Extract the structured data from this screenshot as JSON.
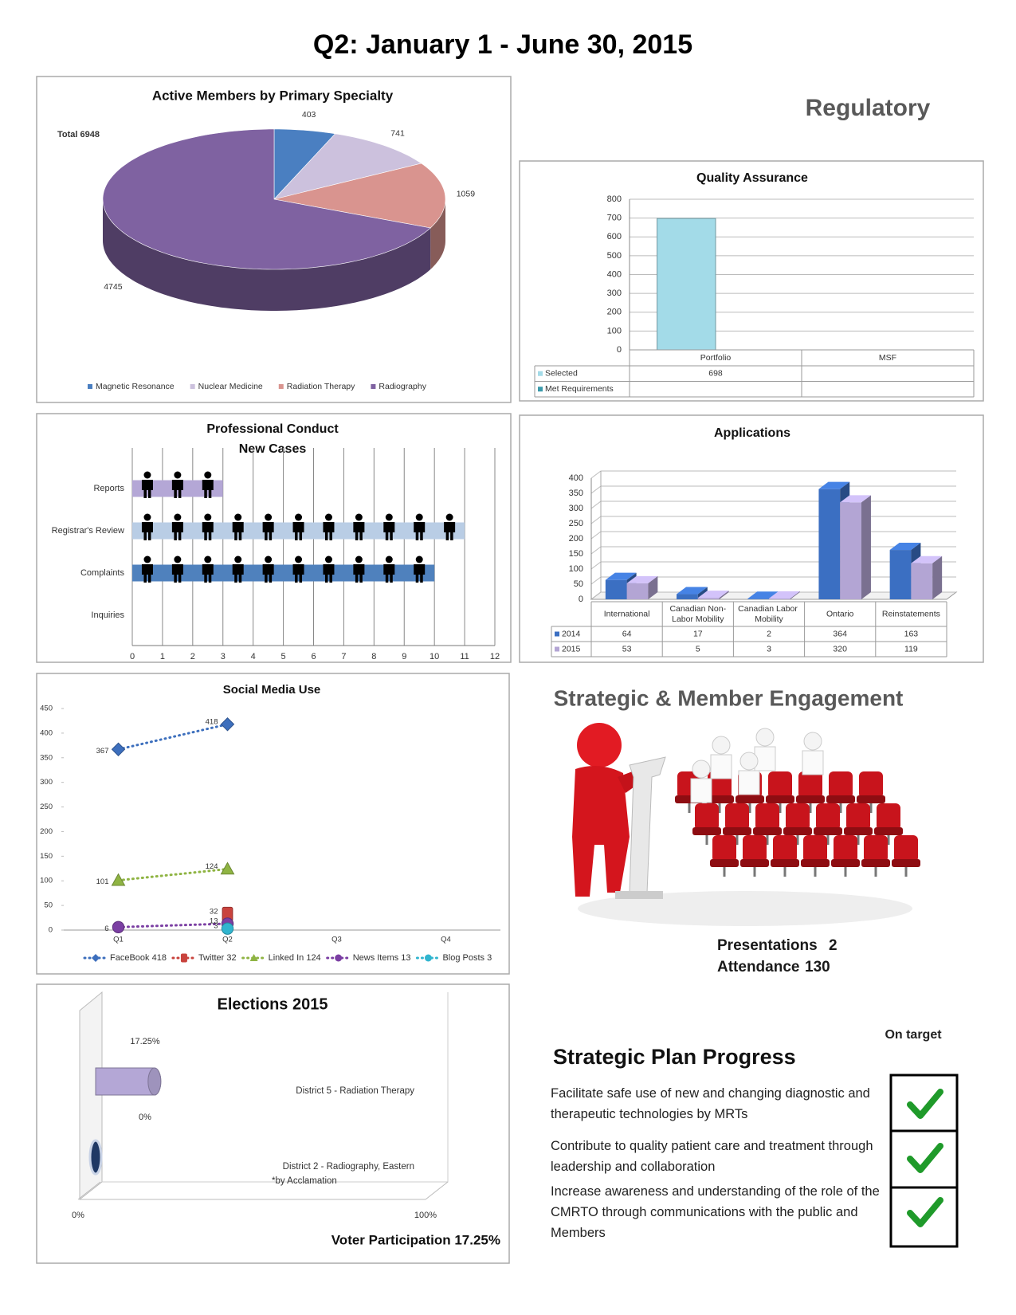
{
  "header": {
    "title": "Q2:  January 1 - June  30, 2015"
  },
  "sections": {
    "regulatory": "Regulatory",
    "engagement": "Strategic & Member Engagement"
  },
  "engagement": {
    "items": [
      {
        "label": "Presentations",
        "value": 2
      },
      {
        "label": "Attendance",
        "value": 130
      }
    ]
  },
  "strategic_plan": {
    "title": "Strategic Plan Progress",
    "status_header": "On target",
    "items": [
      "Facilitate safe use of new and changing diagnostic and therapeutic technologies by MRTs",
      "Contribute to quality patient care and treatment through leadership and collaboration",
      "Increase awareness and understanding of the role of the CMRTO through communications with the public and Members"
    ]
  },
  "chart_data": [
    {
      "type": "pie",
      "title": "Active Members by Primary Specialty",
      "annotation": "Total 6948",
      "categories": [
        "Magnetic Resonance",
        "Nuclear Medicine",
        "Radiation Therapy",
        "Radiography"
      ],
      "values": [
        403,
        741,
        1059,
        4745
      ],
      "colors": [
        "#4a7fc1",
        "#ccc1dd",
        "#d9948f",
        "#7f62a1"
      ],
      "legend": "bottom"
    },
    {
      "type": "bar",
      "title": "Quality Assurance",
      "categories": [
        "Portfolio",
        "MSF"
      ],
      "series": [
        {
          "name": "Selected",
          "color": "#a3dbe8",
          "values": [
            698,
            null
          ]
        },
        {
          "name": "Met Requirements",
          "color": "#3a9aab",
          "values": [
            null,
            null
          ]
        }
      ],
      "ylim": [
        0,
        800
      ],
      "yticks": [
        0,
        100,
        200,
        300,
        400,
        500,
        600,
        700,
        800
      ],
      "grid": true,
      "data_table": true
    },
    {
      "type": "bar",
      "orientation": "horizontal",
      "pictograph": true,
      "title": "Professional Conduct",
      "subtitle": "New Cases",
      "categories": [
        "Reports",
        "Registrar's Review",
        "Complaints",
        "Inquiries"
      ],
      "values": [
        3,
        11,
        10,
        0
      ],
      "colors": [
        "#b4a7d6",
        "#b9cde5",
        "#4f81bd",
        "#4f81bd"
      ],
      "xlim": [
        0,
        12
      ],
      "xticks": [
        0,
        1,
        2,
        3,
        4,
        5,
        6,
        7,
        8,
        9,
        10,
        11,
        12
      ],
      "grid": true
    },
    {
      "type": "bar",
      "3d": true,
      "title": "Applications",
      "categories": [
        "International",
        "Canadian Non-Labor Mobility",
        "Canadian Labor Mobility",
        "Ontario",
        "Reinstatements"
      ],
      "series": [
        {
          "name": "2014",
          "color": "#3b6fc2",
          "values": [
            64,
            17,
            2,
            364,
            163
          ]
        },
        {
          "name": "2015",
          "color": "#b3a5d4",
          "values": [
            53,
            5,
            3,
            320,
            119
          ]
        }
      ],
      "ylim": [
        0,
        400
      ],
      "yticks": [
        0,
        50,
        100,
        150,
        200,
        250,
        300,
        350,
        400
      ],
      "grid": true,
      "data_table": true
    },
    {
      "type": "line",
      "title": "Social Media Use",
      "categories": [
        "Q1",
        "Q2",
        "Q3",
        "Q4"
      ],
      "series": [
        {
          "name": "FaceBook 418",
          "color": "#3d6fbd",
          "marker": "diamond",
          "values": [
            367,
            418,
            null,
            null
          ]
        },
        {
          "name": "Twitter 32",
          "color": "#c9433d",
          "marker": "square",
          "values": [
            null,
            32,
            null,
            null
          ]
        },
        {
          "name": "Linked In 124",
          "color": "#8fb443",
          "marker": "triangle",
          "values": [
            101,
            124,
            null,
            null
          ]
        },
        {
          "name": "News Items 13",
          "color": "#7b3fa3",
          "marker": "circle",
          "values": [
            6,
            13,
            null,
            null
          ]
        },
        {
          "name": "Blog Posts 3",
          "color": "#31b5cf",
          "marker": "circle",
          "values": [
            null,
            3,
            null,
            null
          ]
        }
      ],
      "ylim": [
        0,
        450
      ],
      "yticks": [
        0,
        50,
        100,
        150,
        200,
        250,
        300,
        350,
        400,
        450
      ],
      "legend": "bottom",
      "data_labels": true
    },
    {
      "type": "bar",
      "orientation": "horizontal",
      "shape": "cylinder",
      "title": "Elections 2015",
      "categories": [
        "District 5 - Radiation Therapy",
        "District 2 - Radiography, Eastern"
      ],
      "annotation": "*by Acclamation",
      "values": [
        17.25,
        0
      ],
      "value_labels": [
        "17.25%",
        "0%"
      ],
      "colors": [
        "#b4a7d6",
        "#1f3864"
      ],
      "xlim": [
        0,
        100
      ],
      "xticks": [
        {
          "value": 0,
          "label": "0%"
        },
        {
          "value": 100,
          "label": "100%"
        }
      ],
      "footer": "Voter Participation 17.25%"
    }
  ]
}
